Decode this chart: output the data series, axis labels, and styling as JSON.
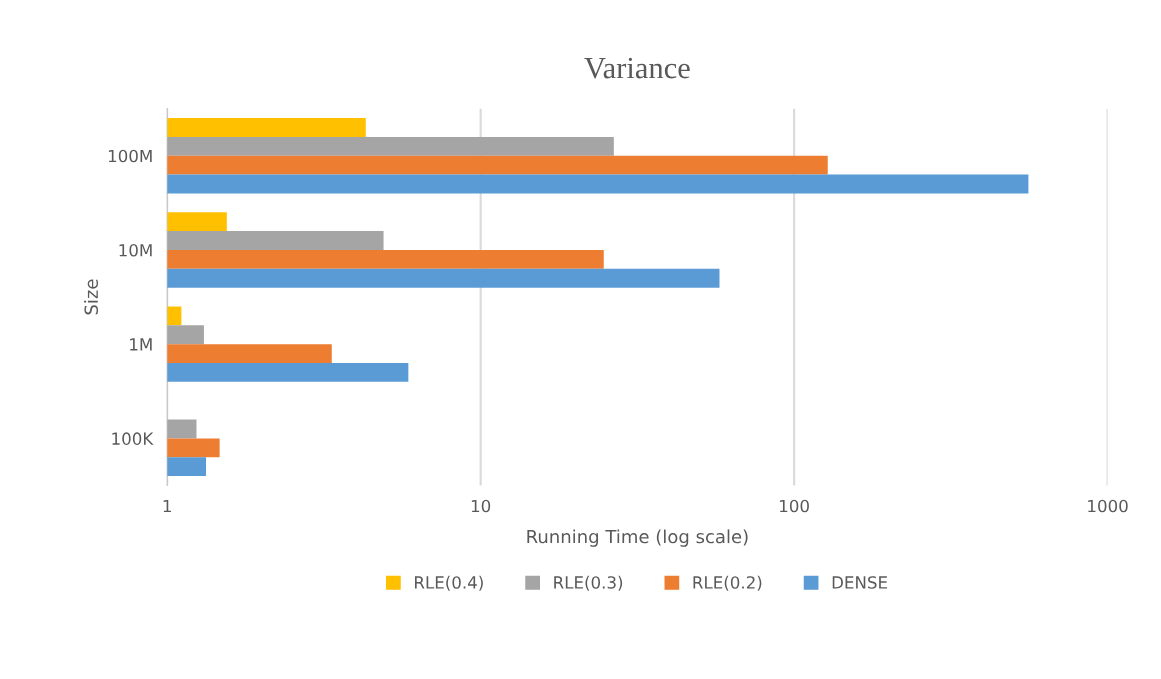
{
  "chart_data": {
    "type": "bar",
    "orientation": "horizontal",
    "title": "Variance",
    "xlabel": "Running Time (log scale)",
    "ylabel": "Size",
    "categories": [
      "100M",
      "10M",
      "1M",
      "100K"
    ],
    "series": [
      {
        "name": "RLE(0.4)",
        "color": "#ffc000",
        "values": [
          4.3,
          1.55,
          1.11,
          null
        ]
      },
      {
        "name": "RLE(0.3)",
        "color": "#a5a5a5",
        "values": [
          26.6,
          4.9,
          1.31,
          1.24
        ]
      },
      {
        "name": "RLE(0.2)",
        "color": "#ed7d31",
        "values": [
          128,
          24.7,
          3.35,
          1.47
        ]
      },
      {
        "name": "DENSE",
        "color": "#5b9bd5",
        "values": [
          559,
          57.8,
          5.88,
          1.33
        ]
      }
    ],
    "log": "x",
    "xlim": [
      1,
      1000
    ],
    "xticks": [
      1,
      10,
      100,
      1000
    ],
    "grid": "x",
    "legend": "bottom"
  }
}
